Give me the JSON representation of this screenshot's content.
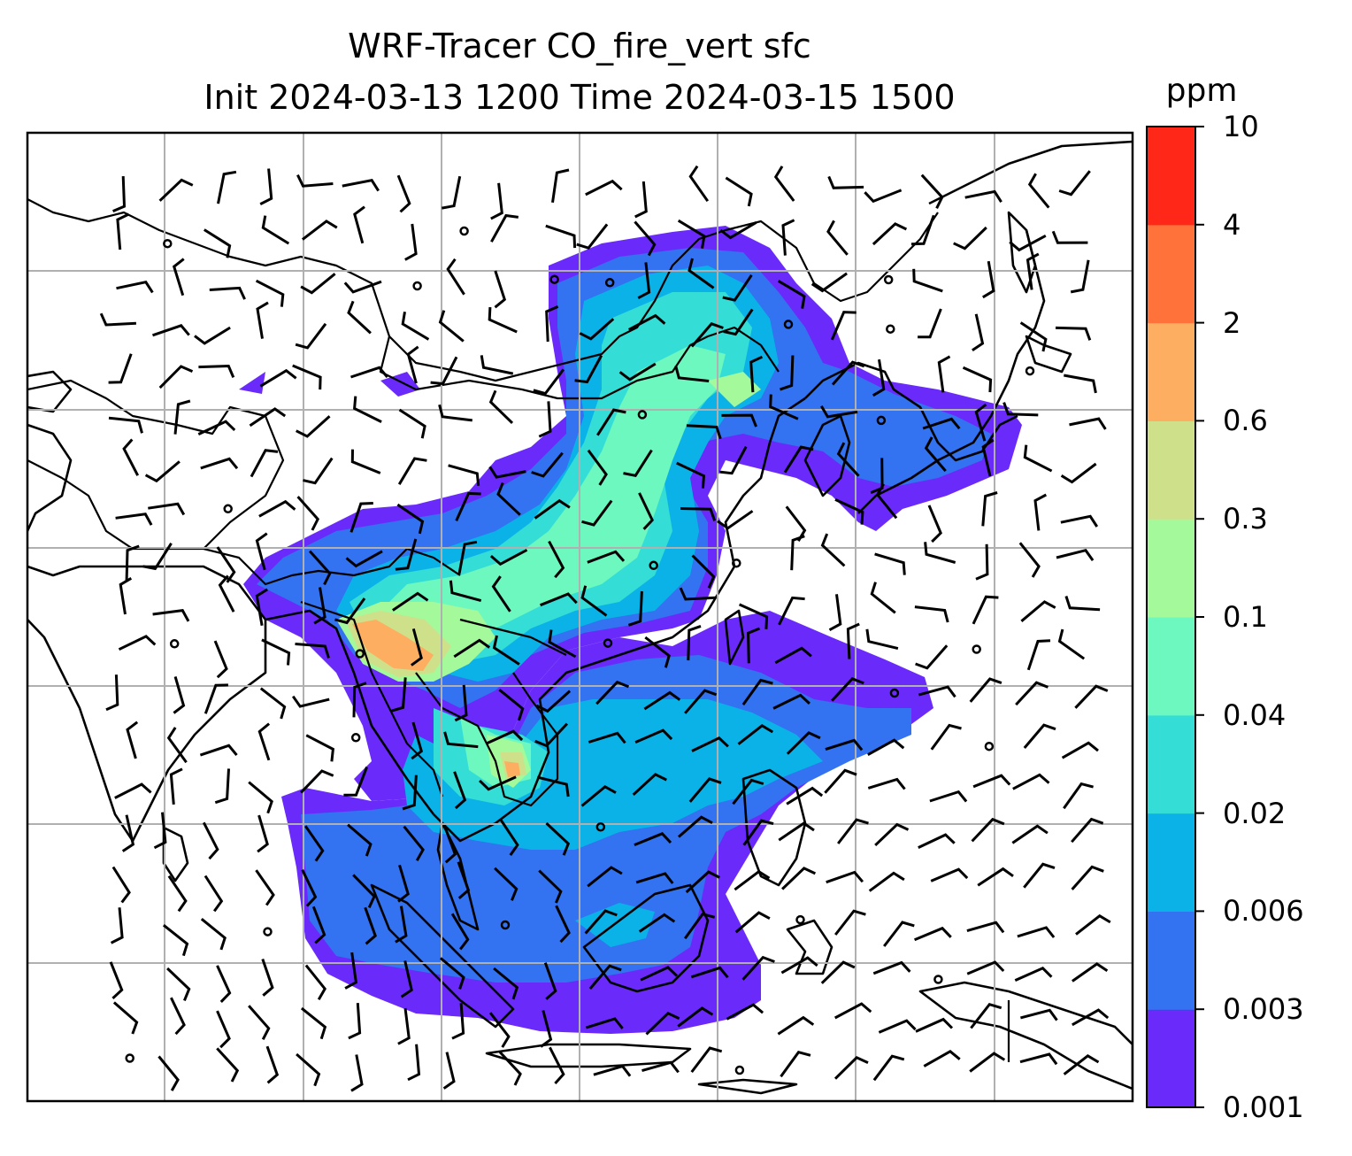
{
  "title": {
    "line1": "WRF-Tracer CO_fire_vert sfc",
    "line2": "Init 2024-03-13 1200 Time 2024-03-15 1500"
  },
  "colorbar": {
    "unit": "ppm",
    "levels": [
      "0.001",
      "0.003",
      "0.006",
      "0.02",
      "0.04",
      "0.1",
      "0.3",
      "0.6",
      "2",
      "4",
      "10"
    ],
    "colors": [
      "#6a2bfa",
      "#3372f0",
      "#0ab2e8",
      "#34ddd5",
      "#6cf8be",
      "#a4f99a",
      "#cfe08b",
      "#fdae60",
      "#ff733a",
      "#ff2718"
    ]
  },
  "map": {
    "gridlines": true,
    "overlays": [
      "coastlines",
      "country-borders",
      "wind-barbs"
    ]
  }
}
